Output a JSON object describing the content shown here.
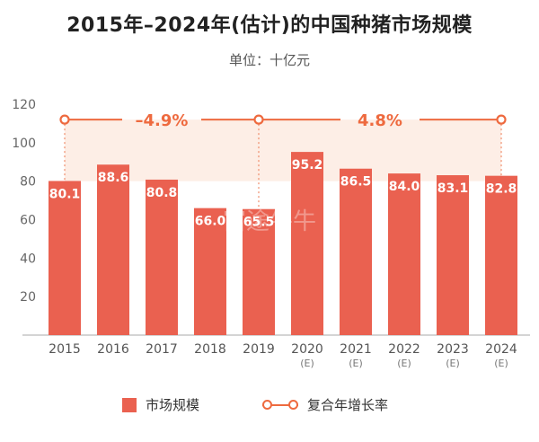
{
  "title": "2015年–2024年(估计)的中国种猪市场规模",
  "subtitle": "单位：十亿元",
  "watermark": "富途牛牛",
  "colors": {
    "bar": "#ea6150",
    "line": "#ee6a3f",
    "band": "#fdebe2",
    "axis": "#bbbbbb",
    "connector": "#ef8c6a"
  },
  "chart_data": {
    "type": "bar",
    "title": "2015年–2024年(估计)的中国种猪市场规模",
    "unit": "十亿元",
    "categories": [
      "2015",
      "2016",
      "2017",
      "2018",
      "2019",
      "2020",
      "2021",
      "2022",
      "2023",
      "2024"
    ],
    "category_notes": [
      "",
      "",
      "",
      "",
      "",
      "(E)",
      "(E)",
      "(E)",
      "(E)",
      "(E)"
    ],
    "values": [
      80.1,
      88.6,
      80.8,
      66.0,
      65.5,
      95.2,
      86.5,
      84.0,
      83.1,
      82.8
    ],
    "value_labels": [
      "80.1",
      "88.6",
      "80.8",
      "66.0",
      "65.5",
      "95.2",
      "86.5",
      "84.0",
      "83.1",
      "82.8"
    ],
    "ylim": [
      0,
      120
    ],
    "yticks": [
      0,
      20,
      40,
      60,
      80,
      100,
      120
    ],
    "ytick_labels": [
      "",
      "20",
      "40",
      "60",
      "80",
      "100",
      "120"
    ],
    "grid": false,
    "cagr": {
      "name": "复合年增长率",
      "level": 112,
      "segments": [
        {
          "from": "2015",
          "to": "2019",
          "label": "–4.9%"
        },
        {
          "from": "2019",
          "to": "2024",
          "label": "4.8%"
        }
      ]
    },
    "legend": [
      {
        "name": "市场规模",
        "kind": "bar"
      },
      {
        "name": "复合年增长率",
        "kind": "line"
      }
    ]
  }
}
